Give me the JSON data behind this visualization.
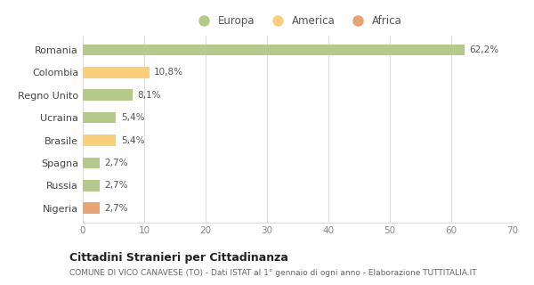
{
  "categories": [
    "Romania",
    "Colombia",
    "Regno Unito",
    "Ucraina",
    "Brasile",
    "Spagna",
    "Russia",
    "Nigeria"
  ],
  "values": [
    62.2,
    10.8,
    8.1,
    5.4,
    5.4,
    2.7,
    2.7,
    2.7
  ],
  "labels": [
    "62,2%",
    "10,8%",
    "8,1%",
    "5,4%",
    "5,4%",
    "2,7%",
    "2,7%",
    "2,7%"
  ],
  "colors": [
    "#b5c98a",
    "#f9cf7a",
    "#b5c98a",
    "#b5c98a",
    "#f9cf7a",
    "#b5c98a",
    "#b5c98a",
    "#e8a472"
  ],
  "legend": [
    {
      "label": "Europa",
      "color": "#b5c98a"
    },
    {
      "label": "America",
      "color": "#f9cf7a"
    },
    {
      "label": "Africa",
      "color": "#e8a472"
    }
  ],
  "xlim": [
    0,
    70
  ],
  "xticks": [
    0,
    10,
    20,
    30,
    40,
    50,
    60,
    70
  ],
  "title": "Cittadini Stranieri per Cittadinanza",
  "subtitle": "COMUNE DI VICO CANAVESE (TO) - Dati ISTAT al 1° gennaio di ogni anno - Elaborazione TUTTITALIA.IT",
  "background_color": "#ffffff",
  "plot_bg_color": "#ffffff",
  "grid_color": "#dddddd",
  "bar_height": 0.5
}
